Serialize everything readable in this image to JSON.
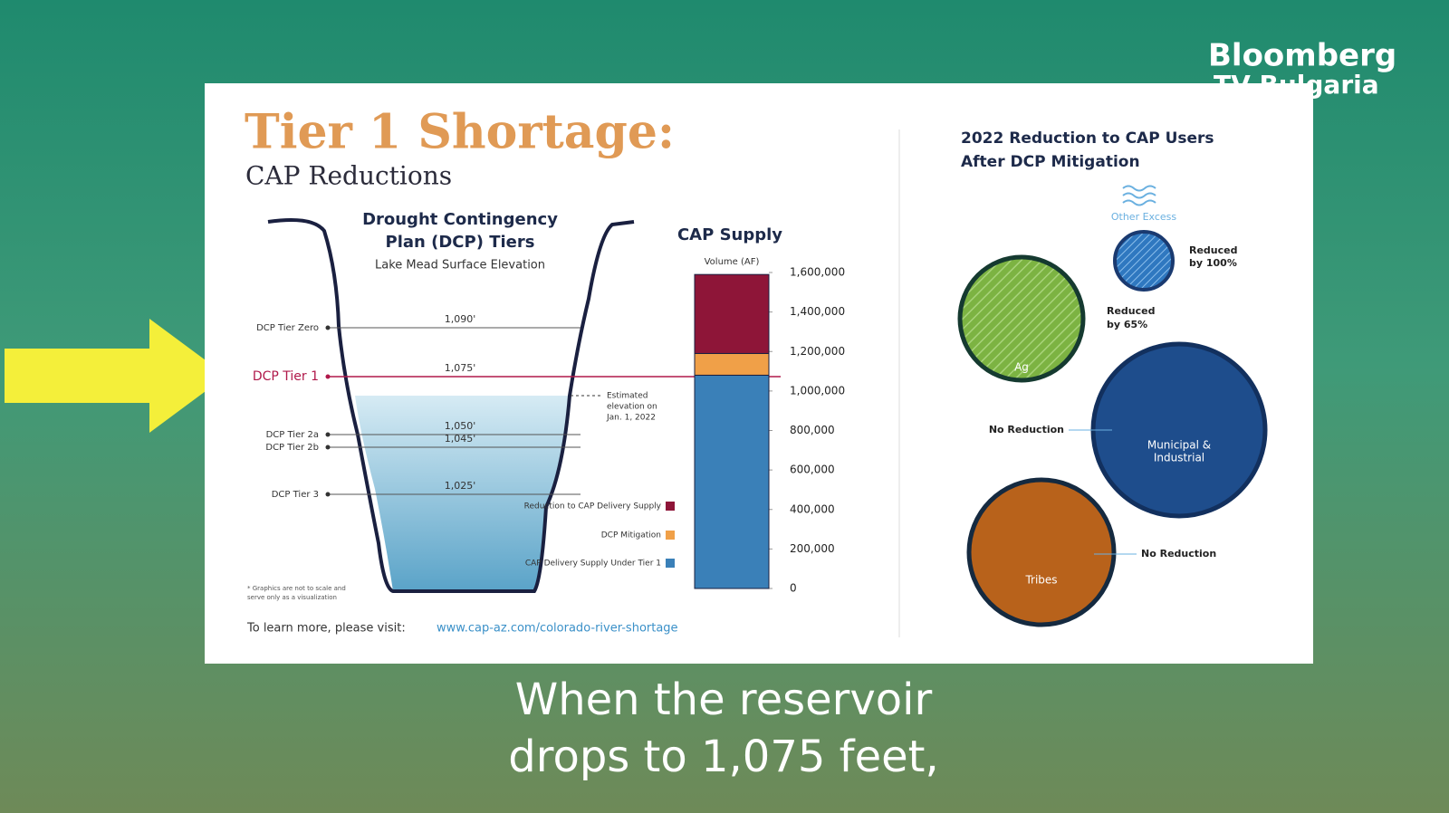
{
  "logo": {
    "lines": [
      "Bloomberg",
      "TV Bulgaria"
    ]
  },
  "header": {
    "title": "Tier 1 Shortage:",
    "subtitle": "CAP Reductions"
  },
  "dcp": {
    "title_lines": [
      "Drought Contingency",
      "Plan (DCP) Tiers"
    ],
    "subtitle": "Lake Mead Surface Elevation",
    "tiers": [
      {
        "label": "DCP Tier Zero",
        "elevation": "1,090'"
      },
      {
        "label": "DCP Tier 1",
        "elevation": "1,075'"
      },
      {
        "label": "DCP Tier 2a",
        "elevation": "1,050'"
      },
      {
        "label": "DCP Tier 2b",
        "elevation": "1,045'"
      },
      {
        "label": "DCP Tier 3",
        "elevation": "1,025'"
      }
    ],
    "estimate_lines": [
      "Estimated",
      "elevation on",
      "Jan. 1, 2022"
    ],
    "footnote_lines": [
      "* Graphics are not to scale and",
      "serve only as a visualization"
    ]
  },
  "chart_data": {
    "type": "bar",
    "stacked": true,
    "title": "CAP Supply",
    "y_label": "Volume (AF)",
    "categories": [
      null
    ],
    "series": [
      {
        "name": "CAP Delivery Supply Under Tier 1",
        "color": "#3a80b8",
        "values": [
          1080000
        ]
      },
      {
        "name": "DCP Mitigation",
        "color": "#f0a048",
        "values": [
          110000
        ]
      },
      {
        "name": "Reduction to CAP Delivery Supply",
        "color": "#8e1538",
        "values": [
          400000
        ]
      }
    ],
    "ylim": [
      0,
      1600000
    ],
    "yticks": [
      0,
      {
        "value": 200000,
        "label": "200,000"
      },
      {
        "value": 400000,
        "label": "400,000"
      },
      {
        "value": 600000,
        "label": "600,000"
      },
      {
        "value": 800000,
        "label": "800,000"
      },
      {
        "value": 1000000,
        "label": "1,000,000"
      },
      {
        "value": 1200000,
        "label": "1,200,000"
      },
      {
        "value": 1400000,
        "label": "1,400,000"
      },
      {
        "value": 1600000,
        "label": "1,600,000"
      }
    ]
  },
  "users": {
    "title_lines": [
      "2022 Reduction to CAP Users",
      "After DCP Mitigation"
    ],
    "other": {
      "name": "Other Excess",
      "note_lines": [
        "Reduced",
        "by 100%"
      ]
    },
    "ag": {
      "name": "Ag",
      "note_lines": [
        "Reduced",
        "by 65%"
      ]
    },
    "mi": {
      "name_lines": [
        "Municipal &",
        "Industrial"
      ],
      "note": "No Reduction"
    },
    "tribes": {
      "name": "Tribes",
      "note": "No Reduction"
    }
  },
  "footer": {
    "text": "To learn more, please visit:",
    "link": "www.cap-az.com/colorado-river-shortage"
  },
  "caption": {
    "lines": [
      "When the reservoir",
      "drops to 1,075 feet,"
    ]
  }
}
